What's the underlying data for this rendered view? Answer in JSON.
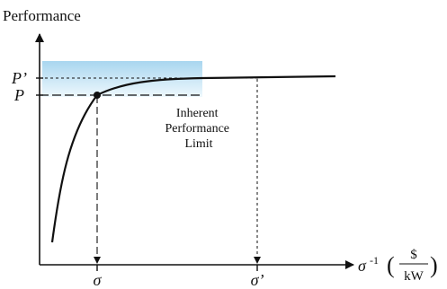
{
  "diagram": {
    "y_axis_title": "Performance",
    "y_tick_upper": "P’",
    "y_tick_lower": "P",
    "x_tick_1": "σ",
    "x_tick_2": "σ’",
    "x_axis_label_main": "σ",
    "x_axis_label_sup": "-1",
    "x_axis_unit_numerator": "$",
    "x_axis_unit_denominator": "kW",
    "annotation_lines": [
      "Inherent",
      "Performance",
      "Limit"
    ]
  },
  "colors": {
    "axis": "#111111",
    "curve": "#111111",
    "shaded_region_top": "#a9d6ef",
    "shaded_region_bottom": "#eef8fd"
  }
}
